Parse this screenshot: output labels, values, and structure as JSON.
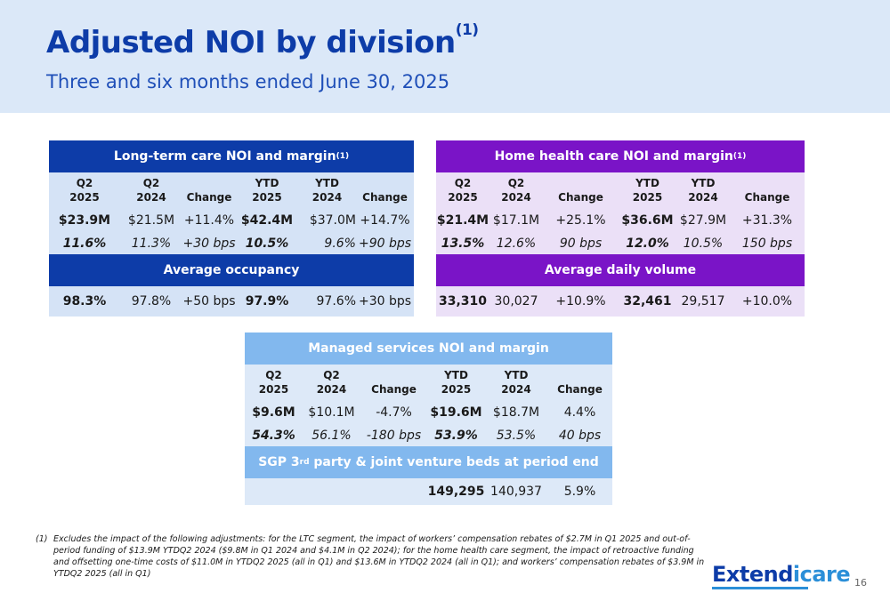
{
  "header": {
    "title": "Adjusted NOI by division",
    "title_sup": "(1)",
    "subtitle": "Three and six months ended June 30, 2025"
  },
  "ltc": {
    "title": "Long-term care NOI and margin",
    "title_sup": "(1)",
    "col_headers": [
      [
        "Q2",
        "2025"
      ],
      [
        "Q2",
        "2024"
      ],
      [
        "",
        "Change"
      ],
      [
        "YTD",
        "2025"
      ],
      [
        "YTD",
        "2024"
      ],
      [
        "",
        "Change"
      ]
    ],
    "noi_row": [
      "$23.9M",
      "$21.5M",
      "+11.4%",
      "$42.4M",
      "$37.0M",
      "+14.7%"
    ],
    "margin_row": [
      "11.6%",
      "11.3%",
      "+30 bps",
      "10.5%",
      "9.6%",
      "+90 bps"
    ],
    "sub_title": "Average occupancy",
    "sub_row": [
      "98.3%",
      "97.8%",
      "+50 bps",
      "97.9%",
      "97.6%",
      "+30 bps"
    ]
  },
  "hhc": {
    "title": "Home health care NOI and margin",
    "title_sup": "(1)",
    "col_headers": [
      [
        "Q2",
        "2025"
      ],
      [
        "Q2",
        "2024"
      ],
      [
        "",
        "Change"
      ],
      [
        "YTD",
        "2025"
      ],
      [
        "YTD",
        "2024"
      ],
      [
        "",
        "Change"
      ]
    ],
    "noi_row": [
      "$21.4M",
      "$17.1M",
      "+25.1%",
      "$36.6M",
      "$27.9M",
      "+31.3%"
    ],
    "margin_row": [
      "13.5%",
      "12.6%",
      "90 bps",
      "12.0%",
      "10.5%",
      "150 bps"
    ],
    "sub_title": "Average daily volume",
    "sub_row": [
      "33,310",
      "30,027",
      "+10.9%",
      "32,461",
      "29,517",
      "+10.0%"
    ]
  },
  "ms": {
    "title": "Managed services NOI and margin",
    "col_headers": [
      [
        "Q2",
        "2025"
      ],
      [
        "Q2",
        "2024"
      ],
      [
        "",
        "Change"
      ],
      [
        "YTD",
        "2025"
      ],
      [
        "YTD",
        "2024"
      ],
      [
        "",
        "Change"
      ]
    ],
    "noi_row": [
      "$9.6M",
      "$10.1M",
      "-4.7%",
      "$19.6M",
      "$18.7M",
      "4.4%"
    ],
    "margin_row": [
      "54.3%",
      "56.1%",
      "-180 bps",
      "53.9%",
      "53.5%",
      "40 bps"
    ],
    "sub_title_pre": "SGP 3",
    "sub_title_sup": "rd",
    "sub_title_post": " party & joint venture beds at period end",
    "sub_row": [
      "",
      "",
      "",
      "149,295",
      "140,937",
      "5.9%"
    ]
  },
  "footnote": {
    "marker": "(1)",
    "text": "Excludes the impact of the following adjustments: for the LTC segment, the impact of workers’ compensation rebates of $2.7M in Q1 2025 and out-of-period funding of $13.9M YTDQ2 2024 ($9.8M in Q1 2024 and $4.1M in Q2 2024); for the home health care segment, the impact of retroactive funding and offsetting one-time costs of $11.0M in YTDQ2 2025 (all in Q1) and $13.6M in YTDQ2 2024 (all in Q1); and workers’ compensation rebates of $3.9M in YTDQ2 2025 (all in Q1)"
  },
  "logo": {
    "part1": "Extend",
    "part2": "icare"
  },
  "page_number": "16"
}
